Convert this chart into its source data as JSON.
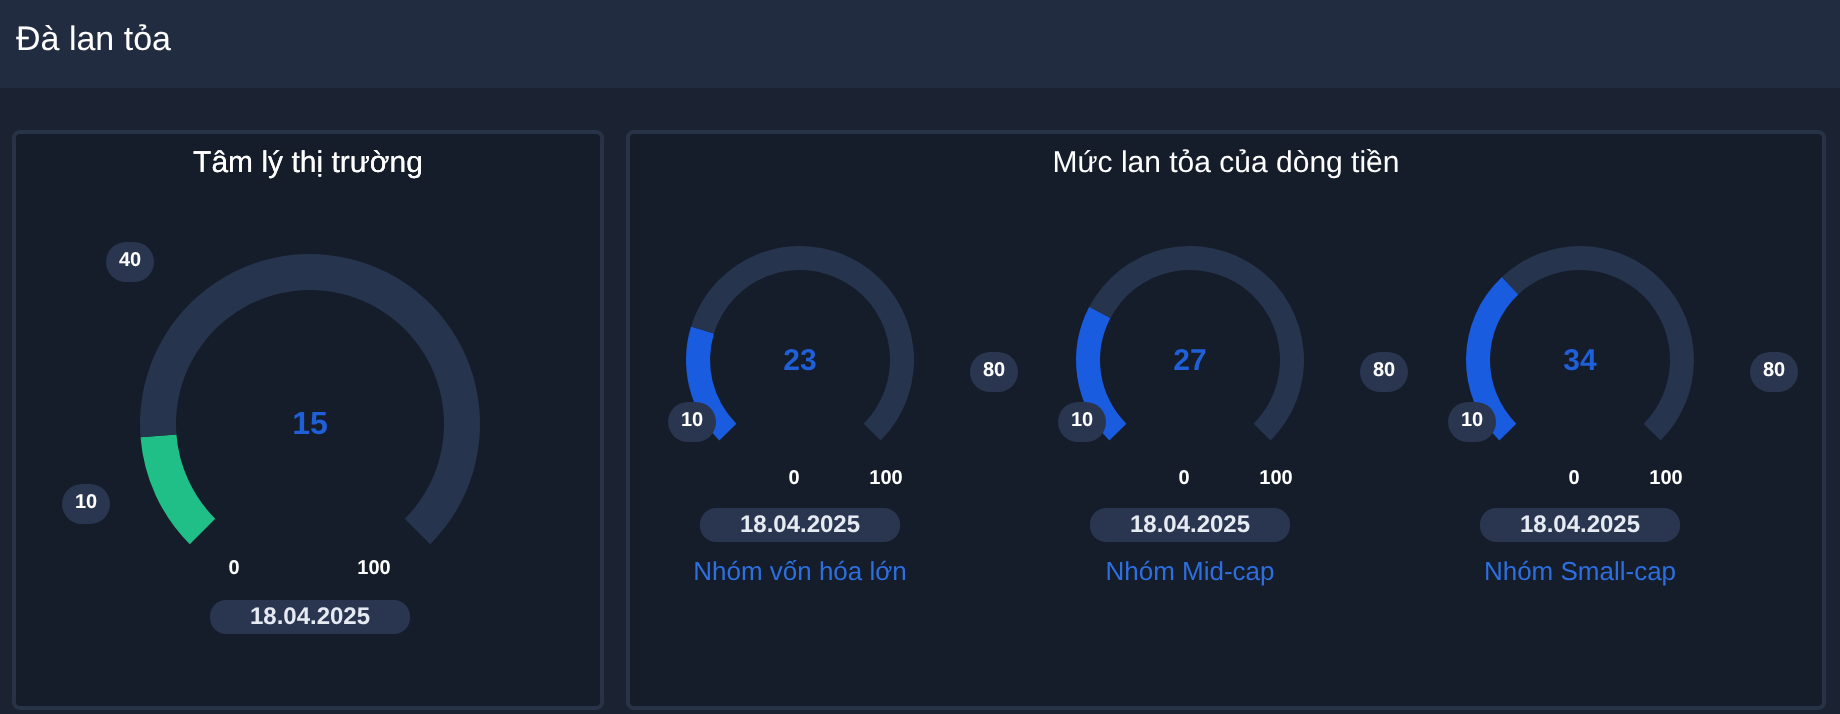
{
  "chart_data": [
    {
      "type": "other",
      "title": "Đà lan tỏa",
      "annotations": [
        "Mức lan tỏa của dòng tiền"
      ]
    },
    {
      "type": "donut",
      "title": "Tâm lý thị trường",
      "categories": [
        null,
        null
      ],
      "values": [
        15,
        85
      ],
      "colors": [
        "#1fbf87",
        "#27344d"
      ],
      "annotations": [
        "15",
        "18.04.2025",
        "0",
        "10",
        "40",
        "100"
      ]
    },
    {
      "type": "donut",
      "xlabel": "Nhóm vốn hóa lớn",
      "categories": [
        null,
        null
      ],
      "values": [
        23,
        77
      ],
      "colors": [
        "#1a5ce0",
        "#27344d"
      ],
      "annotations": [
        "23",
        "18.04.2025",
        "0",
        "10",
        "80",
        "100"
      ]
    },
    {
      "type": "donut",
      "xlabel": "Nhóm Mid-cap",
      "categories": [
        null,
        null
      ],
      "values": [
        27,
        73
      ],
      "colors": [
        "#1a5ce0",
        "#27344d"
      ],
      "annotations": [
        "27",
        "18.04.2025",
        "0",
        "10",
        "80",
        "100"
      ]
    },
    {
      "type": "donut",
      "xlabel": "Nhóm Small-cap",
      "categories": [
        null,
        null
      ],
      "values": [
        34,
        66
      ],
      "colors": [
        "#1a5ce0",
        "#27344d"
      ],
      "annotations": [
        "34",
        "18.04.2025",
        "0",
        "10",
        "80",
        "100"
      ]
    }
  ]
}
